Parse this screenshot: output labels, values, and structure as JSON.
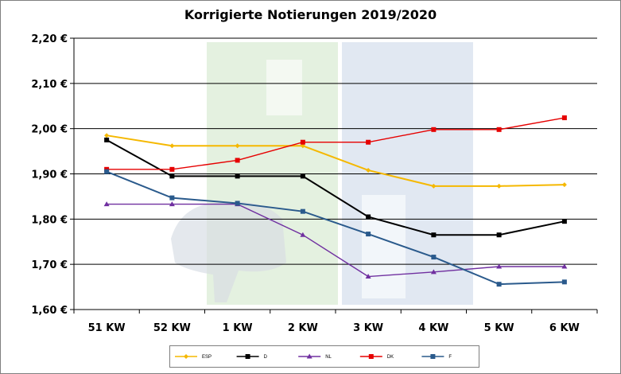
{
  "chart_data": {
    "type": "line",
    "title": "Korrigierte Notierungen 2019/2020",
    "xlabel": "",
    "ylabel": "",
    "categories": [
      "51 KW",
      "52 KW",
      "1 KW",
      "2 KW",
      "3 KW",
      "4 KW",
      "5 KW",
      "6 KW"
    ],
    "y_tick_labels": [
      "1,60 €",
      "1,70 €",
      "1,80 €",
      "1,90 €",
      "2,00 €",
      "2,10 €",
      "2,20 €"
    ],
    "y_ticks": [
      1.6,
      1.7,
      1.8,
      1.9,
      2.0,
      2.1,
      2.2
    ],
    "ylim": [
      1.6,
      2.2
    ],
    "grid": true,
    "legend_position": "bottom",
    "series": [
      {
        "name": "ESP",
        "color": "#f5b800",
        "marker": "diamond",
        "values": [
          1.985,
          1.962,
          1.962,
          1.962,
          1.908,
          1.873,
          1.873,
          1.876
        ]
      },
      {
        "name": "D",
        "color": "#000000",
        "marker": "square",
        "values": [
          1.975,
          1.895,
          1.895,
          1.895,
          1.805,
          1.765,
          1.765,
          1.795
        ]
      },
      {
        "name": "NL",
        "color": "#7030a0",
        "marker": "triangle",
        "values": [
          1.833,
          1.833,
          1.833,
          1.765,
          1.673,
          1.683,
          1.695,
          1.695
        ]
      },
      {
        "name": "DK",
        "color": "#e60000",
        "marker": "square",
        "values": [
          1.91,
          1.91,
          1.93,
          1.97,
          1.97,
          1.998,
          1.998,
          2.024
        ]
      },
      {
        "name": "F",
        "color": "#2a5a8c",
        "marker": "square",
        "values": [
          1.905,
          1.847,
          1.835,
          1.817,
          1.767,
          1.716,
          1.656,
          1.661
        ]
      }
    ]
  }
}
